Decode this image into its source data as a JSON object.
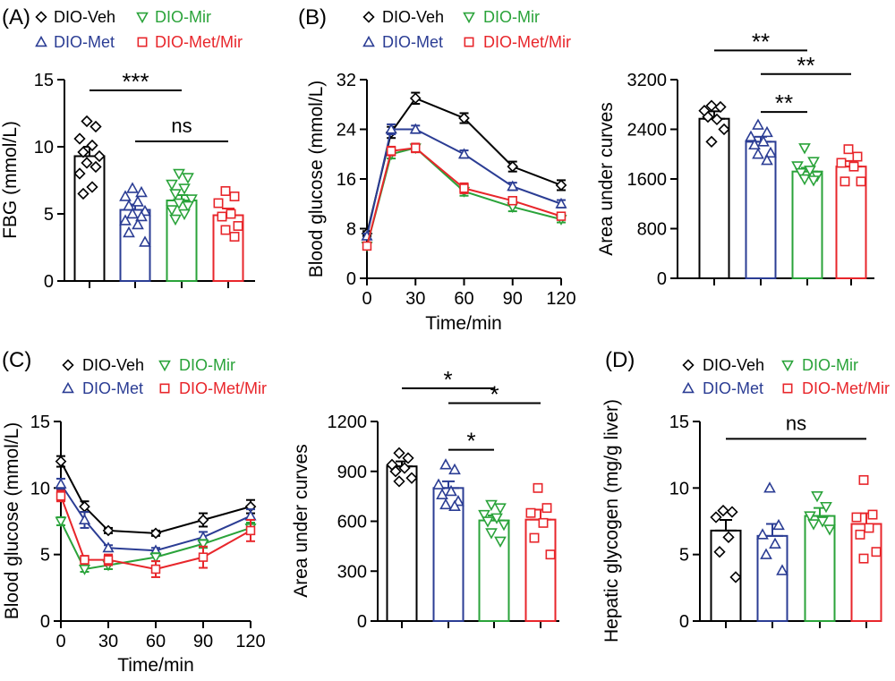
{
  "colors": {
    "veh": "#000000",
    "met": "#2b3d94",
    "mir": "#2aa33a",
    "metmir": "#e8262b"
  },
  "legend": {
    "veh": {
      "label": "DIO-Veh",
      "marker": "diamond"
    },
    "met": {
      "label": "DIO-Met",
      "marker": "triangle-up"
    },
    "mir": {
      "label": "DIO-Mir",
      "marker": "triangle-down"
    },
    "metmir": {
      "label": "DIO-Met/Mir",
      "marker": "square"
    }
  },
  "panel_labels": {
    "A": "(A)",
    "B": "(B)",
    "C": "(C)",
    "D": "(D)"
  },
  "chart_data": [
    {
      "id": "A",
      "type": "bar",
      "ylabel": "FBG (mmol/L)",
      "ylim": [
        0,
        15
      ],
      "yticks": [
        0,
        5,
        10,
        15
      ],
      "groups": [
        "veh",
        "met",
        "mir",
        "metmir"
      ],
      "series": [
        {
          "group": "veh",
          "mean": 9.3,
          "sem": 0.7,
          "points": [
            11.9,
            11.5,
            10.6,
            10.1,
            9.6,
            9.3,
            8.8,
            8.5,
            8.0,
            7.0,
            6.5
          ]
        },
        {
          "group": "met",
          "mean": 5.3,
          "sem": 0.4,
          "points": [
            6.9,
            6.6,
            6.3,
            5.9,
            5.6,
            5.2,
            5.0,
            4.8,
            4.5,
            4.2,
            3.6,
            2.9
          ]
        },
        {
          "group": "mir",
          "mean": 6.0,
          "sem": 0.4,
          "points": [
            8.0,
            7.7,
            7.2,
            6.9,
            6.5,
            6.1,
            5.8,
            5.6,
            5.3,
            5.0,
            4.6
          ]
        },
        {
          "group": "metmir",
          "mean": 4.9,
          "sem": 0.5,
          "points": [
            6.7,
            6.3,
            5.8,
            5.0,
            4.8,
            4.1,
            3.8,
            3.3
          ]
        }
      ],
      "annotations": [
        {
          "from": 0,
          "to": 2,
          "text": "***",
          "y": 14.2
        },
        {
          "from": 1,
          "to": 3,
          "text": "ns",
          "y": 10.4
        }
      ]
    },
    {
      "id": "B1",
      "type": "line",
      "xlabel": "Time/min",
      "ylabel": "Blood glucose (mmol/L)",
      "xlim": [
        0,
        120
      ],
      "xticks": [
        0,
        30,
        60,
        90,
        120
      ],
      "ylim": [
        0,
        32
      ],
      "yticks": [
        0,
        8,
        16,
        24,
        32
      ],
      "x": [
        0,
        15,
        30,
        60,
        90,
        120
      ],
      "series": [
        {
          "group": "veh",
          "values": [
            7.2,
            23.5,
            29.0,
            25.8,
            18.0,
            15.0
          ],
          "sem": [
            0.4,
            0.9,
            0.9,
            0.8,
            0.8,
            0.8
          ]
        },
        {
          "group": "met",
          "values": [
            6.8,
            24.0,
            24.0,
            20.0,
            14.8,
            12.0
          ],
          "sem": [
            0.4,
            0.8,
            0.6,
            0.6,
            0.6,
            0.6
          ]
        },
        {
          "group": "mir",
          "values": [
            5.2,
            20.0,
            21.0,
            14.0,
            11.5,
            9.5
          ],
          "sem": [
            0.4,
            0.7,
            0.6,
            0.7,
            0.7,
            0.5
          ]
        },
        {
          "group": "metmir",
          "values": [
            5.2,
            20.5,
            21.0,
            14.5,
            12.5,
            10.0
          ],
          "sem": [
            0.4,
            0.7,
            0.7,
            0.8,
            0.6,
            0.5
          ]
        }
      ]
    },
    {
      "id": "B2",
      "type": "bar",
      "ylabel": "Area under curves",
      "ylim": [
        0,
        3200
      ],
      "yticks": [
        0,
        800,
        1600,
        2400,
        3200
      ],
      "groups": [
        "veh",
        "met",
        "mir",
        "metmir"
      ],
      "series": [
        {
          "group": "veh",
          "mean": 2570,
          "sem": 120,
          "points": [
            2780,
            2760,
            2700,
            2560,
            2600,
            2400,
            2200
          ]
        },
        {
          "group": "met",
          "mean": 2200,
          "sem": 80,
          "points": [
            2470,
            2350,
            2280,
            2200,
            2150,
            2020,
            2000,
            1900
          ]
        },
        {
          "group": "mir",
          "mean": 1720,
          "sem": 60,
          "points": [
            2100,
            1880,
            1810,
            1740,
            1700,
            1650,
            1600,
            1580
          ]
        },
        {
          "group": "metmir",
          "mean": 1800,
          "sem": 90,
          "points": [
            2080,
            1960,
            1860,
            1800,
            1560,
            1560
          ]
        }
      ],
      "annotations": [
        {
          "from": 0,
          "to": 2,
          "text": "**",
          "y": 3670
        },
        {
          "from": 1,
          "to": 3,
          "text": "**",
          "y": 3290
        },
        {
          "from": 1,
          "to": 2,
          "text": "**",
          "y": 2680
        }
      ]
    },
    {
      "id": "C1",
      "type": "line",
      "xlabel": "Time/min",
      "ylabel": "Blood glucose (mmol/L)",
      "xlim": [
        0,
        120
      ],
      "xticks": [
        0,
        30,
        60,
        90,
        120
      ],
      "ylim": [
        0,
        15
      ],
      "yticks": [
        0,
        5,
        10,
        15
      ],
      "x": [
        0,
        15,
        30,
        60,
        90,
        120
      ],
      "series": [
        {
          "group": "veh",
          "values": [
            12.0,
            8.6,
            6.8,
            6.6,
            7.6,
            8.6
          ],
          "sem": [
            0.4,
            0.4,
            0.2,
            0.2,
            0.5,
            0.5
          ]
        },
        {
          "group": "met",
          "values": [
            10.3,
            7.6,
            5.5,
            5.3,
            6.3,
            7.9
          ],
          "sem": [
            0.4,
            0.6,
            0.2,
            0.2,
            0.4,
            0.5
          ]
        },
        {
          "group": "mir",
          "values": [
            7.5,
            3.9,
            4.2,
            4.8,
            5.8,
            7.0
          ],
          "sem": [
            0.3,
            0.2,
            0.3,
            0.3,
            0.3,
            0.4
          ]
        },
        {
          "group": "metmir",
          "values": [
            9.4,
            4.6,
            4.6,
            3.9,
            4.8,
            6.8
          ],
          "sem": [
            0.4,
            0.3,
            0.4,
            0.6,
            0.8,
            0.8
          ]
        }
      ]
    },
    {
      "id": "C2",
      "type": "bar",
      "ylabel": "Area under curves",
      "ylim": [
        0,
        1200
      ],
      "yticks": [
        0,
        300,
        600,
        900,
        1200
      ],
      "groups": [
        "veh",
        "met",
        "mir",
        "metmir"
      ],
      "series": [
        {
          "group": "veh",
          "mean": 930,
          "sem": 30,
          "points": [
            1010,
            980,
            940,
            920,
            900,
            860,
            840
          ]
        },
        {
          "group": "met",
          "mean": 800,
          "sem": 40,
          "points": [
            940,
            910,
            820,
            780,
            760,
            720,
            700,
            690
          ]
        },
        {
          "group": "mir",
          "mean": 605,
          "sem": 30,
          "points": [
            700,
            680,
            640,
            620,
            600,
            580,
            530,
            480
          ]
        },
        {
          "group": "metmir",
          "mean": 610,
          "sem": 60,
          "points": [
            800,
            680,
            650,
            590,
            500,
            400
          ]
        }
      ],
      "annotations": [
        {
          "from": 0,
          "to": 2,
          "text": "*",
          "y": 1400
        },
        {
          "from": 1,
          "to": 3,
          "text": "*",
          "y": 1310
        },
        {
          "from": 1,
          "to": 2,
          "text": "*",
          "y": 1030
        }
      ]
    },
    {
      "id": "D",
      "type": "bar",
      "ylabel": "Hepatic glycogen (mg/g liver)",
      "ylim": [
        0,
        15
      ],
      "yticks": [
        0,
        5,
        10,
        15
      ],
      "groups": [
        "veh",
        "met",
        "mir",
        "metmir"
      ],
      "series": [
        {
          "group": "veh",
          "mean": 6.8,
          "sem": 0.8,
          "points": [
            8.3,
            8.2,
            7.8,
            6.3,
            5.2,
            3.3
          ]
        },
        {
          "group": "met",
          "mean": 6.4,
          "sem": 0.9,
          "points": [
            10.0,
            7.2,
            6.5,
            5.8,
            5.0,
            3.8
          ]
        },
        {
          "group": "mir",
          "mean": 7.9,
          "sem": 0.6,
          "points": [
            9.4,
            8.6,
            7.9,
            7.5,
            7.3,
            6.9
          ]
        },
        {
          "group": "metmir",
          "mean": 7.3,
          "sem": 0.8,
          "points": [
            10.6,
            8.0,
            7.8,
            7.0,
            6.5,
            5.2,
            4.7
          ]
        }
      ],
      "annotations": [
        {
          "from": 0,
          "to": 3,
          "text": "ns",
          "y": 13.7
        }
      ]
    }
  ]
}
